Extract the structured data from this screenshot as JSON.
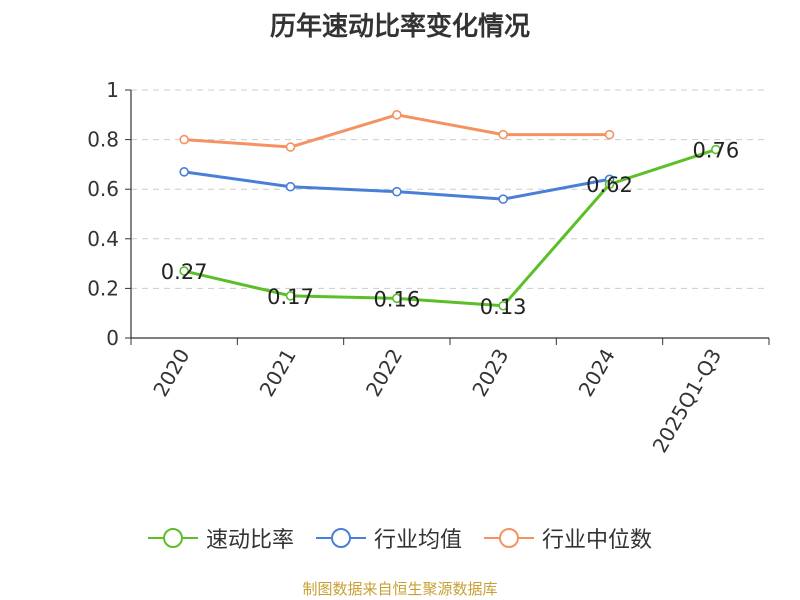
{
  "chart_data": {
    "type": "line",
    "title": "历年速动比率变化情况",
    "categories": [
      "2020",
      "2021",
      "2022",
      "2023",
      "2024",
      "2025Q1-Q3"
    ],
    "yticks": [
      "0",
      "0.2",
      "0.4",
      "0.6",
      "0.8",
      "1"
    ],
    "ylim": [
      0,
      1
    ],
    "grid": true,
    "legend_position": "bottom",
    "series": [
      {
        "name": "速动比率",
        "color": "#5cbf2a",
        "values": [
          0.27,
          0.17,
          0.16,
          0.13,
          0.62,
          0.76
        ],
        "labels": [
          "0.27",
          "0.17",
          "0.16",
          "0.13",
          "0.62",
          "0.76"
        ]
      },
      {
        "name": "行业均值",
        "color": "#4a7fd6",
        "values": [
          0.67,
          0.61,
          0.59,
          0.56,
          0.64,
          null
        ]
      },
      {
        "name": "行业中位数",
        "color": "#f59262",
        "values": [
          0.8,
          0.77,
          0.9,
          0.82,
          0.82,
          null
        ]
      }
    ]
  },
  "source": "制图数据来自恒生聚源数据库"
}
